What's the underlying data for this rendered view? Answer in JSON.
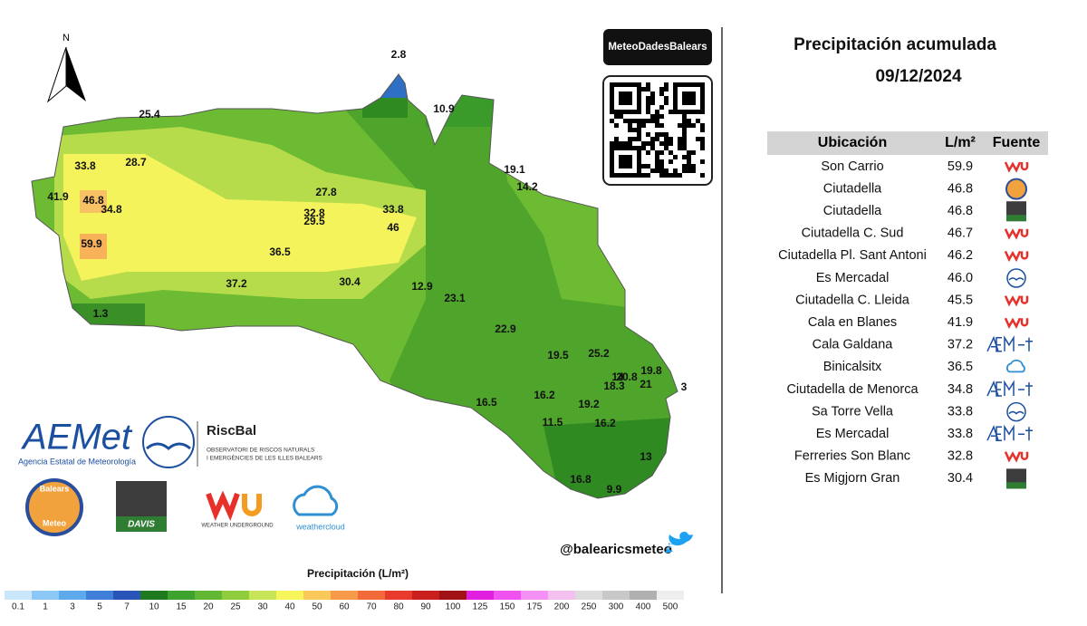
{
  "header": {
    "title": "Precipitación acumulada",
    "date": "09/12/2024",
    "compass": "N",
    "qr_label": "MeteoDadesBalears",
    "handle": "@balearicsmeteo"
  },
  "map": {
    "labels": [
      "2.8",
      "25.4",
      "10.9",
      "33.8",
      "28.7",
      "19.1",
      "14.2",
      "41.9",
      "46.8",
      "34.8",
      "27.8",
      "32.8",
      "29.5",
      "33.8",
      "46",
      "59.9",
      "36.5",
      "37.2",
      "30.4",
      "12.9",
      "23.1",
      "1.3",
      "22.9",
      "19.5",
      "25.2",
      "19.8",
      "14",
      "20.8",
      "18.3",
      "21",
      "3",
      "16.5",
      "16.2",
      "19.2",
      "11.5",
      "16.2",
      "13",
      "16.8",
      "9.9"
    ]
  },
  "logos": {
    "aemet": "AEMet",
    "aemet_sub": "Agencia Estatal de Meteorología",
    "riscbal": "RiscBal",
    "riscbal_sub1": "OBSERVATORI DE RISCOS NATURALS",
    "riscbal_sub2": "I EMERGÈNCIES DE LES ILLES BALEARS",
    "balears_top": "Balears",
    "balears_bottom": "Meteo",
    "davis": "DAVIS",
    "wu": "WEATHER UNDERGROUND",
    "weathercloud": "weathercloud"
  },
  "colorbar": {
    "title": "Precipitación (L/m²)",
    "labels": [
      "0.1",
      "1",
      "3",
      "5",
      "7",
      "10",
      "15",
      "20",
      "25",
      "30",
      "40",
      "50",
      "60",
      "70",
      "80",
      "90",
      "100",
      "125",
      "150",
      "175",
      "200",
      "250",
      "300",
      "400",
      "500"
    ],
    "colors": [
      "#c9e6fb",
      "#8cc8f5",
      "#5ea8ec",
      "#3f7fd9",
      "#2a55b8",
      "#1f7a1f",
      "#3ea22e",
      "#62b832",
      "#8fcd3c",
      "#c8e55a",
      "#f6f65a",
      "#fbc85a",
      "#f79a4a",
      "#f26a3a",
      "#e83b2c",
      "#c9201e",
      "#a01214",
      "#e01fe0",
      "#f052f0",
      "#f590f5",
      "#f4c0f0",
      "#dddddd",
      "#c8c8c8",
      "#b0b0b0",
      "#eeeeee"
    ]
  },
  "table": {
    "columns": [
      "Ubicación",
      "L/m²",
      "Fuente"
    ],
    "rows": [
      [
        "Son Carrio",
        "59.9"
      ],
      [
        "Ciutadella",
        "46.8"
      ],
      [
        "Ciutadella",
        "46.8"
      ],
      [
        "Ciutadella C. Sud",
        "46.7"
      ],
      [
        "Ciutadella Pl. Sant Antoni",
        "46.2"
      ],
      [
        "Es Mercadal",
        "46.0"
      ],
      [
        "Ciutadella C. Lleida",
        "45.5"
      ],
      [
        "Cala en Blanes",
        "41.9"
      ],
      [
        "Cala Galdana",
        "37.2"
      ],
      [
        "Binicalsitx",
        "36.5"
      ],
      [
        "Ciutadella de Menorca",
        "34.8"
      ],
      [
        "Sa Torre Vella",
        "33.8"
      ],
      [
        "Es Mercadal",
        "33.8"
      ],
      [
        "Ferreries Son Blanc",
        "32.8"
      ],
      [
        "Es Migjorn Gran",
        "30.4"
      ]
    ]
  }
}
